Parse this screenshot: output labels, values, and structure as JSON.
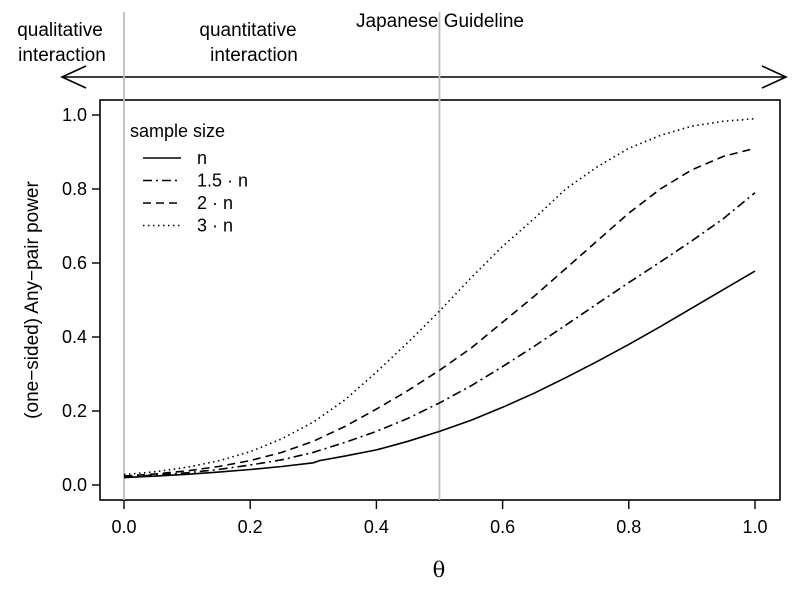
{
  "chart_data": {
    "type": "line",
    "xlabel": "θ",
    "ylabel": "(one−sided) Any−pair power",
    "xlim": [
      0,
      1
    ],
    "ylim": [
      0,
      1
    ],
    "xticks": [
      "0.0",
      "0.2",
      "0.4",
      "0.6",
      "0.8",
      "1.0"
    ],
    "yticks": [
      "0.0",
      "0.2",
      "0.4",
      "0.6",
      "0.8",
      "1.0"
    ],
    "grid": false,
    "legend": {
      "title": "sample size",
      "placement": "top-left"
    },
    "series": [
      {
        "name": "n",
        "dash": "solid",
        "x": [
          0,
          0.05,
          0.1,
          0.15,
          0.2,
          0.25,
          0.3,
          0.31,
          0.35,
          0.4,
          0.45,
          0.5,
          0.55,
          0.6,
          0.65,
          0.7,
          0.75,
          0.8,
          0.85,
          0.9,
          0.95,
          1.0
        ],
        "values": [
          0.02,
          0.024,
          0.029,
          0.035,
          0.042,
          0.05,
          0.06,
          0.066,
          0.078,
          0.095,
          0.118,
          0.145,
          0.175,
          0.21,
          0.248,
          0.29,
          0.334,
          0.38,
          0.428,
          0.478,
          0.528,
          0.578
        ]
      },
      {
        "name": "1.5 · n",
        "dash": "dashdot",
        "x": [
          0,
          0.05,
          0.1,
          0.15,
          0.2,
          0.25,
          0.3,
          0.35,
          0.4,
          0.45,
          0.5,
          0.55,
          0.6,
          0.65,
          0.7,
          0.75,
          0.8,
          0.85,
          0.9,
          0.95,
          1.0
        ],
        "values": [
          0.022,
          0.027,
          0.033,
          0.042,
          0.054,
          0.068,
          0.088,
          0.115,
          0.145,
          0.18,
          0.222,
          0.268,
          0.32,
          0.375,
          0.432,
          0.49,
          0.547,
          0.603,
          0.66,
          0.72,
          0.79
        ]
      },
      {
        "name": "2 · n",
        "dash": "dashed",
        "x": [
          0,
          0.05,
          0.1,
          0.15,
          0.2,
          0.25,
          0.3,
          0.35,
          0.4,
          0.45,
          0.5,
          0.55,
          0.6,
          0.65,
          0.7,
          0.75,
          0.8,
          0.85,
          0.9,
          0.95,
          1.0
        ],
        "values": [
          0.024,
          0.03,
          0.038,
          0.05,
          0.066,
          0.088,
          0.118,
          0.158,
          0.205,
          0.255,
          0.31,
          0.37,
          0.44,
          0.51,
          0.585,
          0.66,
          0.735,
          0.8,
          0.852,
          0.888,
          0.91
        ]
      },
      {
        "name": "3 · n",
        "dash": "dotted",
        "x": [
          0,
          0.05,
          0.1,
          0.15,
          0.2,
          0.25,
          0.3,
          0.35,
          0.4,
          0.45,
          0.5,
          0.55,
          0.6,
          0.65,
          0.7,
          0.75,
          0.8,
          0.85,
          0.9,
          0.95,
          1.0
        ],
        "values": [
          0.028,
          0.036,
          0.048,
          0.065,
          0.09,
          0.125,
          0.17,
          0.23,
          0.305,
          0.385,
          0.47,
          0.56,
          0.645,
          0.72,
          0.8,
          0.86,
          0.91,
          0.945,
          0.97,
          0.983,
          0.99
        ]
      }
    ],
    "reference_lines": [
      {
        "x": 0
      },
      {
        "x": 0.5,
        "label": "Japanese Guideline"
      }
    ],
    "annotations": {
      "left_line1": "qualitative",
      "left_line2": "interaction",
      "right_line1": "quantitative",
      "right_line2": "interaction",
      "guideline": "Japanese Guideline"
    },
    "colors": {
      "lines": "#000000",
      "reference": "#bdbdbd"
    }
  }
}
